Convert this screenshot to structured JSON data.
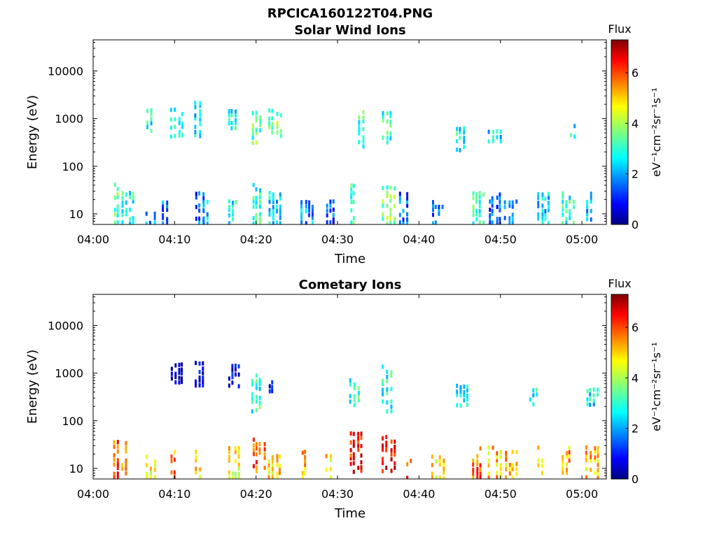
{
  "figure_title": "RPCICA160122T04.PNG",
  "chart_data": [
    {
      "type": "heatmap",
      "title": "Solar Wind Ions",
      "xlabel": "Time",
      "ylabel": "Energy (eV)",
      "x_ticks": [
        "04:00",
        "04:10",
        "04:20",
        "04:30",
        "04:40",
        "04:50",
        "05:00"
      ],
      "x_range": [
        "04:00",
        "05:03"
      ],
      "y_scale": "log",
      "y_ticks": [
        10,
        100,
        1000,
        10000
      ],
      "y_range": [
        6,
        45000
      ],
      "colorbar": {
        "label": "Flux",
        "units": "eV⁻¹cm⁻²sr⁻¹s⁻¹",
        "ticks": [
          0,
          2,
          4,
          6
        ],
        "range": [
          0,
          7.3
        ],
        "colormap": "jet"
      },
      "grid": false,
      "clusters": [
        {
          "t": "04:03",
          "e": [
            6,
            45
          ],
          "f": 3.4
        },
        {
          "t": "04:04",
          "e": [
            6,
            30
          ],
          "f": 3.0
        },
        {
          "t": "04:07",
          "e": [
            6,
            12
          ],
          "f": 1.8
        },
        {
          "t": "04:09",
          "e": [
            6,
            20
          ],
          "f": 1.8
        },
        {
          "t": "04:13",
          "e": [
            6,
            30
          ],
          "f": 1.6
        },
        {
          "t": "04:14",
          "e": [
            6,
            20
          ],
          "f": 2.2
        },
        {
          "t": "04:17",
          "e": [
            6,
            20
          ],
          "f": 2.6
        },
        {
          "t": "04:20",
          "e": [
            6,
            45
          ],
          "f": 3.0
        },
        {
          "t": "04:22",
          "e": [
            6,
            30
          ],
          "f": 2.4
        },
        {
          "t": "04:26",
          "e": [
            6,
            20
          ],
          "f": 2.0
        },
        {
          "t": "04:29",
          "e": [
            6,
            20
          ],
          "f": 1.4
        },
        {
          "t": "04:32",
          "e": [
            6,
            45
          ],
          "f": 3.2
        },
        {
          "t": "04:36",
          "e": [
            6,
            40
          ],
          "f": 3.6
        },
        {
          "t": "04:38",
          "e": [
            6,
            30
          ],
          "f": 1.6
        },
        {
          "t": "04:42",
          "e": [
            6,
            20
          ],
          "f": 1.6
        },
        {
          "t": "04:47",
          "e": [
            6,
            30
          ],
          "f": 3.0
        },
        {
          "t": "04:49",
          "e": [
            6,
            30
          ],
          "f": 1.6
        },
        {
          "t": "04:51",
          "e": [
            6,
            20
          ],
          "f": 2.0
        },
        {
          "t": "04:55",
          "e": [
            6,
            30
          ],
          "f": 2.4
        },
        {
          "t": "04:58",
          "e": [
            6,
            30
          ],
          "f": 3.0
        },
        {
          "t": "05:01",
          "e": [
            6,
            30
          ],
          "f": 2.2
        },
        {
          "t": "04:07",
          "e": [
            500,
            1700
          ],
          "f": 2.8
        },
        {
          "t": "04:10",
          "e": [
            400,
            1700
          ],
          "f": 3.0
        },
        {
          "t": "04:13",
          "e": [
            400,
            2500
          ],
          "f": 2.6
        },
        {
          "t": "04:17",
          "e": [
            600,
            1600
          ],
          "f": 2.8
        },
        {
          "t": "04:20",
          "e": [
            300,
            1800
          ],
          "f": 3.4
        },
        {
          "t": "04:22",
          "e": [
            400,
            1700
          ],
          "f": 3.6
        },
        {
          "t": "04:33",
          "e": [
            200,
            1500
          ],
          "f": 3.0
        },
        {
          "t": "04:36",
          "e": [
            300,
            1500
          ],
          "f": 3.0
        },
        {
          "t": "04:45",
          "e": [
            200,
            700
          ],
          "f": 2.8
        },
        {
          "t": "04:49",
          "e": [
            300,
            600
          ],
          "f": 2.6
        },
        {
          "t": "04:59",
          "e": [
            400,
            800
          ],
          "f": 2.8
        }
      ]
    },
    {
      "type": "heatmap",
      "title": "Cometary Ions",
      "xlabel": "Time",
      "ylabel": "Energy (eV)",
      "x_ticks": [
        "04:00",
        "04:10",
        "04:20",
        "04:30",
        "04:40",
        "04:50",
        "05:00"
      ],
      "x_range": [
        "04:00",
        "05:03"
      ],
      "y_scale": "log",
      "y_ticks": [
        10,
        100,
        1000,
        10000
      ],
      "y_range": [
        6,
        45000
      ],
      "colorbar": {
        "label": "Flux",
        "units": "eV⁻¹cm⁻²sr⁻¹s⁻¹",
        "ticks": [
          0,
          2,
          4,
          6
        ],
        "range": [
          0,
          7.3
        ],
        "colormap": "jet"
      },
      "grid": false,
      "clusters": [
        {
          "t": "04:03",
          "e": [
            6,
            50
          ],
          "f": 5.8
        },
        {
          "t": "04:04",
          "e": [
            6,
            40
          ],
          "f": 5.2
        },
        {
          "t": "04:07",
          "e": [
            6,
            20
          ],
          "f": 4.6
        },
        {
          "t": "04:10",
          "e": [
            6,
            25
          ],
          "f": 5.4
        },
        {
          "t": "04:13",
          "e": [
            6,
            25
          ],
          "f": 4.8
        },
        {
          "t": "04:17",
          "e": [
            6,
            30
          ],
          "f": 4.6
        },
        {
          "t": "04:20",
          "e": [
            8,
            45
          ],
          "f": 5.8
        },
        {
          "t": "04:22",
          "e": [
            6,
            20
          ],
          "f": 4.8
        },
        {
          "t": "04:26",
          "e": [
            6,
            25
          ],
          "f": 5.0
        },
        {
          "t": "04:29",
          "e": [
            6,
            20
          ],
          "f": 4.8
        },
        {
          "t": "04:32",
          "e": [
            8,
            60
          ],
          "f": 6.2
        },
        {
          "t": "04:36",
          "e": [
            8,
            50
          ],
          "f": 6.4
        },
        {
          "t": "04:39",
          "e": [
            6,
            20
          ],
          "f": 5.8
        },
        {
          "t": "04:42",
          "e": [
            6,
            20
          ],
          "f": 4.8
        },
        {
          "t": "04:47",
          "e": [
            6,
            30
          ],
          "f": 5.8
        },
        {
          "t": "04:49",
          "e": [
            6,
            30
          ],
          "f": 5.0
        },
        {
          "t": "04:51",
          "e": [
            6,
            25
          ],
          "f": 5.0
        },
        {
          "t": "04:55",
          "e": [
            6,
            30
          ],
          "f": 5.0
        },
        {
          "t": "04:58",
          "e": [
            6,
            30
          ],
          "f": 5.2
        },
        {
          "t": "05:01",
          "e": [
            6,
            30
          ],
          "f": 5.0
        },
        {
          "t": "04:10",
          "e": [
            600,
            1700
          ],
          "f": 0.6
        },
        {
          "t": "04:13",
          "e": [
            500,
            1800
          ],
          "f": 0.6
        },
        {
          "t": "04:17",
          "e": [
            500,
            1600
          ],
          "f": 0.8
        },
        {
          "t": "04:20",
          "e": [
            150,
            1000
          ],
          "f": 3.0
        },
        {
          "t": "04:22",
          "e": [
            400,
            900
          ],
          "f": 0.6
        },
        {
          "t": "04:32",
          "e": [
            200,
            800
          ],
          "f": 3.0
        },
        {
          "t": "04:36",
          "e": [
            150,
            1500
          ],
          "f": 2.8
        },
        {
          "t": "04:45",
          "e": [
            200,
            600
          ],
          "f": 2.8
        },
        {
          "t": "04:54",
          "e": [
            200,
            500
          ],
          "f": 2.8
        },
        {
          "t": "05:01",
          "e": [
            200,
            500
          ],
          "f": 2.6
        }
      ]
    }
  ]
}
